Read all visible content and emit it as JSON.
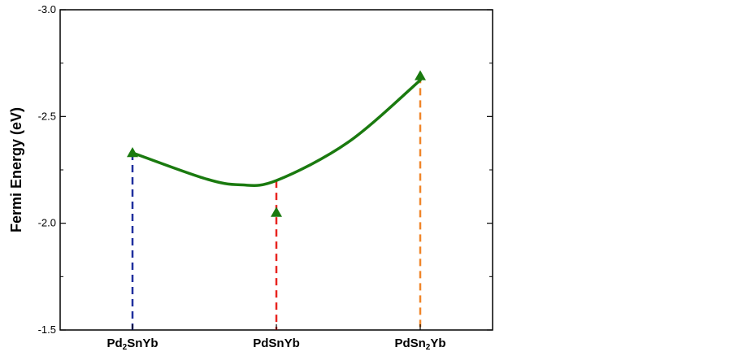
{
  "chart_data": {
    "type": "line",
    "title": "",
    "xlabel": "",
    "ylabel": "Fermi Energy (eV)",
    "y_reversed": true,
    "ylim": [
      -3.0,
      -1.5
    ],
    "yticks": [
      "-3.0",
      "-2.5",
      "-2.0",
      "-1.5"
    ],
    "categories": [
      "Pd2SnYb",
      "PdSnYb",
      "PdSn2Yb"
    ],
    "category_labels": [
      {
        "pre": "Pd",
        "sub": "2",
        "post": "SnYb"
      },
      {
        "pre": "PdSnYb",
        "sub": "",
        "post": ""
      },
      {
        "pre": "PdSn",
        "sub": "2",
        "post": "Yb"
      }
    ],
    "series": [
      {
        "values": [
          -2.33,
          -2.05,
          -2.69
        ],
        "marker": "triangle",
        "color": "#1a7a0f"
      }
    ],
    "fit_curve": {
      "x": [
        0,
        0.5,
        0.75,
        1,
        1.5,
        2
      ],
      "y": [
        -2.33,
        -2.21,
        -2.18,
        -2.2,
        -2.38,
        -2.67
      ],
      "color": "#1a7a0f"
    },
    "drop_line_colors": [
      "#1f2f9e",
      "#e8231f",
      "#f0862a"
    ],
    "grid": false,
    "legend": "none"
  }
}
